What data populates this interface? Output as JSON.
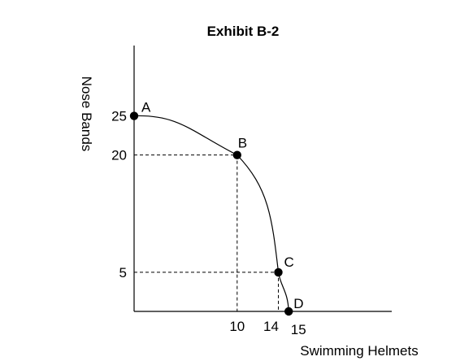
{
  "chart_data": {
    "type": "line",
    "title": "Exhibit B-2",
    "xlabel": "Swimming Helmets",
    "ylabel": "Nose Bands",
    "xlim": [
      0,
      25
    ],
    "ylim": [
      0,
      34
    ],
    "grid": false,
    "x_ticks": [
      "10",
      "14",
      "15"
    ],
    "y_ticks": [
      "25",
      "20",
      "5"
    ],
    "points": [
      {
        "label": "A",
        "x": 0,
        "y": 25
      },
      {
        "label": "B",
        "x": 10,
        "y": 20
      },
      {
        "label": "C",
        "x": 14,
        "y": 5
      },
      {
        "label": "D",
        "x": 15,
        "y": 0
      }
    ],
    "guides": [
      {
        "x": 10,
        "y": 20
      },
      {
        "x": 14,
        "y": 5
      }
    ]
  }
}
